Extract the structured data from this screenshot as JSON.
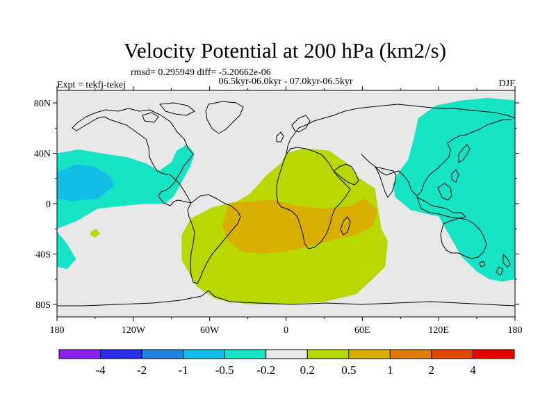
{
  "chart_data": {
    "type": "heatmap",
    "title": "Velocity Potential at 200 hPa (km2/s)",
    "stats": "rmsd= 0.295949 diff= -5.20662e-06",
    "periods": "06.5kyr-06.0kyr - 07.0kyr-06.5kyr",
    "experiment": "Expt = tekfj-tekej",
    "season": "DJF",
    "projection": "cylindrical equidistant",
    "xlim": [
      -180,
      180
    ],
    "ylim": [
      -90,
      90
    ],
    "x_ticks": [
      {
        "value": -180,
        "label": "180"
      },
      {
        "value": -120,
        "label": "120W"
      },
      {
        "value": -60,
        "label": "60W"
      },
      {
        "value": 0,
        "label": "0"
      },
      {
        "value": 60,
        "label": "60E"
      },
      {
        "value": 120,
        "label": "120E"
      },
      {
        "value": 180,
        "label": "180"
      }
    ],
    "y_ticks": [
      {
        "value": 80,
        "label": "80N"
      },
      {
        "value": 40,
        "label": "40N"
      },
      {
        "value": 0,
        "label": "0"
      },
      {
        "value": -40,
        "label": "40S"
      },
      {
        "value": -80,
        "label": "80S"
      }
    ],
    "colorbar": {
      "colors": [
        "#8a1ff0",
        "#2a2ce8",
        "#1f86e6",
        "#14bde6",
        "#14e3c4",
        "#e8e8e8",
        "#b8d800",
        "#d8ae00",
        "#e07a00",
        "#e04800",
        "#e80000"
      ],
      "labels": [
        {
          "boundary": 1,
          "text": "-4"
        },
        {
          "boundary": 2,
          "text": "-2"
        },
        {
          "boundary": 3,
          "text": "-1"
        },
        {
          "boundary": 4,
          "text": "-0.5"
        },
        {
          "boundary": 5,
          "text": "-0.2"
        },
        {
          "boundary": 6,
          "text": "0.2"
        },
        {
          "boundary": 7,
          "text": "0.5"
        },
        {
          "boundary": 8,
          "text": "1"
        },
        {
          "boundary": 9,
          "text": "2"
        },
        {
          "boundary": 10,
          "text": "4"
        }
      ]
    },
    "regions": [
      {
        "name": "n-pacific-negative",
        "level": "-0.5 to -0.2",
        "color": "#14e3c4",
        "points": [
          [
            -180,
            40
          ],
          [
            -163,
            43
          ],
          [
            -145,
            40
          ],
          [
            -125,
            37
          ],
          [
            -110,
            32
          ],
          [
            -100,
            26
          ],
          [
            -90,
            33
          ],
          [
            -86,
            42
          ],
          [
            -78,
            47
          ],
          [
            -72,
            40
          ],
          [
            -75,
            30
          ],
          [
            -88,
            6
          ],
          [
            -95,
            0
          ],
          [
            -110,
            0
          ],
          [
            -130,
            -2
          ],
          [
            -148,
            -4
          ],
          [
            -165,
            -14
          ],
          [
            -180,
            -20
          ]
        ]
      },
      {
        "name": "s-pacific-negative",
        "level": "-0.5 to -0.2",
        "color": "#14e3c4",
        "points": [
          [
            -180,
            -22
          ],
          [
            -172,
            -32
          ],
          [
            -165,
            -44
          ],
          [
            -172,
            -52
          ],
          [
            -180,
            -50
          ]
        ]
      },
      {
        "name": "n-pacific-core",
        "level": "-1 to -0.5",
        "color": "#14bde6",
        "points": [
          [
            -180,
            25
          ],
          [
            -165,
            31
          ],
          [
            -152,
            30
          ],
          [
            -138,
            22
          ],
          [
            -135,
            14
          ],
          [
            -148,
            4
          ],
          [
            -168,
            2
          ],
          [
            -180,
            4
          ]
        ]
      },
      {
        "name": "asia-pacific-negative",
        "level": "-0.5 to -0.2",
        "color": "#14e3c4",
        "points": [
          [
            180,
            82
          ],
          [
            158,
            84
          ],
          [
            138,
            82
          ],
          [
            118,
            78
          ],
          [
            104,
            68
          ],
          [
            100,
            50
          ],
          [
            96,
            35
          ],
          [
            88,
            24
          ],
          [
            84,
            15
          ],
          [
            86,
            5
          ],
          [
            98,
            -5
          ],
          [
            110,
            -8
          ],
          [
            120,
            -10
          ],
          [
            130,
            -28
          ],
          [
            138,
            -42
          ],
          [
            150,
            -54
          ],
          [
            160,
            -60
          ],
          [
            170,
            -62
          ],
          [
            180,
            -60
          ]
        ]
      },
      {
        "name": "atlantic-africa-positive",
        "level": "0.2 to 0.5",
        "color": "#b8d800",
        "points": [
          [
            0,
            40
          ],
          [
            14,
            44
          ],
          [
            34,
            42
          ],
          [
            48,
            32
          ],
          [
            58,
            20
          ],
          [
            70,
            12
          ],
          [
            72,
            -2
          ],
          [
            75,
            -20
          ],
          [
            80,
            -30
          ],
          [
            78,
            -50
          ],
          [
            68,
            -60
          ],
          [
            55,
            -72
          ],
          [
            30,
            -78
          ],
          [
            0,
            -80
          ],
          [
            -30,
            -80
          ],
          [
            -55,
            -76
          ],
          [
            -70,
            -66
          ],
          [
            -82,
            -45
          ],
          [
            -82,
            -25
          ],
          [
            -75,
            -12
          ],
          [
            -58,
            -3
          ],
          [
            -38,
            2
          ],
          [
            -28,
            8
          ],
          [
            -16,
            22
          ],
          [
            -4,
            32
          ]
        ]
      },
      {
        "name": "south-atlantic-indian-core",
        "level": "0.5 to 1",
        "color": "#d8ae00",
        "points": [
          [
            -45,
            0
          ],
          [
            -25,
            2
          ],
          [
            -10,
            3
          ],
          [
            10,
            -2
          ],
          [
            30,
            -4
          ],
          [
            50,
            -2
          ],
          [
            62,
            4
          ],
          [
            72,
            -5
          ],
          [
            68,
            -18
          ],
          [
            55,
            -25
          ],
          [
            40,
            -28
          ],
          [
            18,
            -34
          ],
          [
            0,
            -38
          ],
          [
            -20,
            -40
          ],
          [
            -35,
            -38
          ],
          [
            -45,
            -30
          ],
          [
            -50,
            -18
          ]
        ]
      },
      {
        "name": "central-pacific-small-positive",
        "level": "0.2 to 0.5",
        "color": "#b8d800",
        "points": [
          [
            -153,
            -22
          ],
          [
            -149,
            -20
          ],
          [
            -146,
            -24
          ],
          [
            -150,
            -27
          ],
          [
            -154,
            -25
          ]
        ]
      }
    ]
  }
}
